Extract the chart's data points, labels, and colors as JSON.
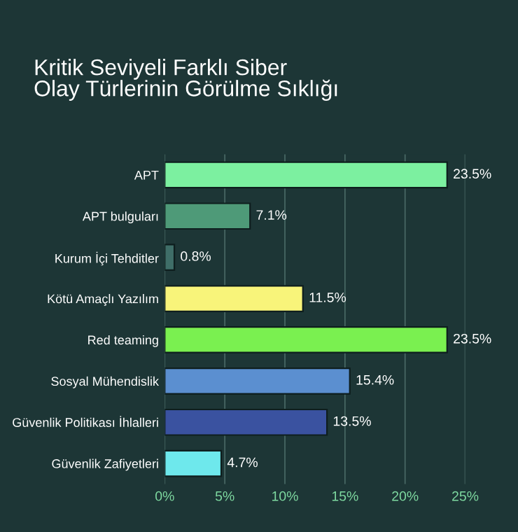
{
  "chart_data": {
    "type": "bar",
    "orientation": "horizontal",
    "title": "Kritik Seviyeli Farklı Siber\nOlay Türlerinin Görülme Sıklığı",
    "categories": [
      "APT",
      "APT bulguları",
      "Kurum İçi Tehditler",
      "Kötü Amaçlı Yazılım",
      "Red teaming",
      "Sosyal Mühendislik",
      "Güvenlik Politikası İhlalleri",
      "Güvenlik Zafiyetleri"
    ],
    "values": [
      23.5,
      7.1,
      0.8,
      11.5,
      23.5,
      15.4,
      13.5,
      4.7
    ],
    "colors": [
      "#7cf0a0",
      "#4e9a78",
      "#3f6e68",
      "#f8f47a",
      "#7af050",
      "#5b8fd0",
      "#3a52a0",
      "#6ee8ec"
    ],
    "value_labels": [
      "23.5%",
      "7.1%",
      "0.8%",
      "11.5%",
      "23.5%",
      "15.4%",
      "13.5%",
      "4.7%"
    ],
    "xlim": [
      0,
      25
    ],
    "xticks": [
      {
        "value": 0,
        "label": "0%"
      },
      {
        "value": 5,
        "label": "5%"
      },
      {
        "value": 10,
        "label": "10%"
      },
      {
        "value": 15,
        "label": "15%"
      },
      {
        "value": 20,
        "label": "20%"
      },
      {
        "value": 25,
        "label": "25%"
      }
    ],
    "grid": "x",
    "legend": false
  }
}
